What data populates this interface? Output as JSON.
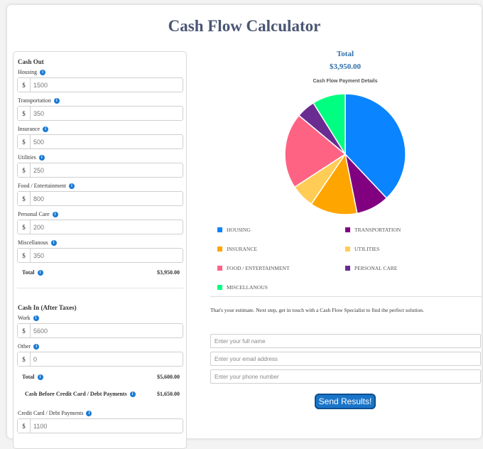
{
  "title": "Cash Flow Calculator",
  "cash_out": {
    "heading": "Cash Out",
    "fields": [
      {
        "label": "Housing",
        "value": "1500"
      },
      {
        "label": "Transportation",
        "value": "350"
      },
      {
        "label": "Insurance",
        "value": "500"
      },
      {
        "label": "Utilities",
        "value": "250"
      },
      {
        "label": "Food / Entertainment",
        "value": "800"
      },
      {
        "label": "Personal Care",
        "value": "200"
      },
      {
        "label": "Miscellanous",
        "value": "350"
      }
    ],
    "total_label": "Total",
    "total_value": "$3,950.00"
  },
  "cash_in": {
    "heading": "Cash In (After Taxes)",
    "fields": [
      {
        "label": "Work",
        "value": "5600"
      },
      {
        "label": "Other",
        "value": "0"
      }
    ],
    "total_label": "Total",
    "total_value": "$5,600.00",
    "before_cc_label": "Cash Before Credit Card / Debt Payments",
    "before_cc_value": "$1,650.00",
    "cc_label": "Credit Card / Debt Payments",
    "cc_value": "1100"
  },
  "currency_symbol": "$",
  "right": {
    "total_label": "Total",
    "total_value": "$3,950.00",
    "chart_title": "Cash Flow Payment Details",
    "note": "That's your estimate. Next step, get in touch with a Cash Flow Specialist to find the perfect solution.",
    "name_placeholder": "Enter your full name",
    "email_placeholder": "Enter your email address",
    "phone_placeholder": "Enter your phone number",
    "send_label": "Send Results!"
  },
  "chart_data": {
    "type": "pie",
    "title": "Cash Flow Payment Details",
    "legend_position": "bottom",
    "categories": [
      "HOUSING",
      "TRANSPORTATION",
      "INSURANCE",
      "UTILITIES",
      "FOOD / ENTERTAINMENT",
      "PERSONAL CARE",
      "MISCELLANOUS"
    ],
    "values": [
      1500,
      350,
      500,
      250,
      800,
      200,
      350
    ],
    "colors": [
      "#0a84ff",
      "#800080",
      "#ffa500",
      "#ffcd56",
      "#ff6384",
      "#6a2c91",
      "#00ff80"
    ]
  }
}
